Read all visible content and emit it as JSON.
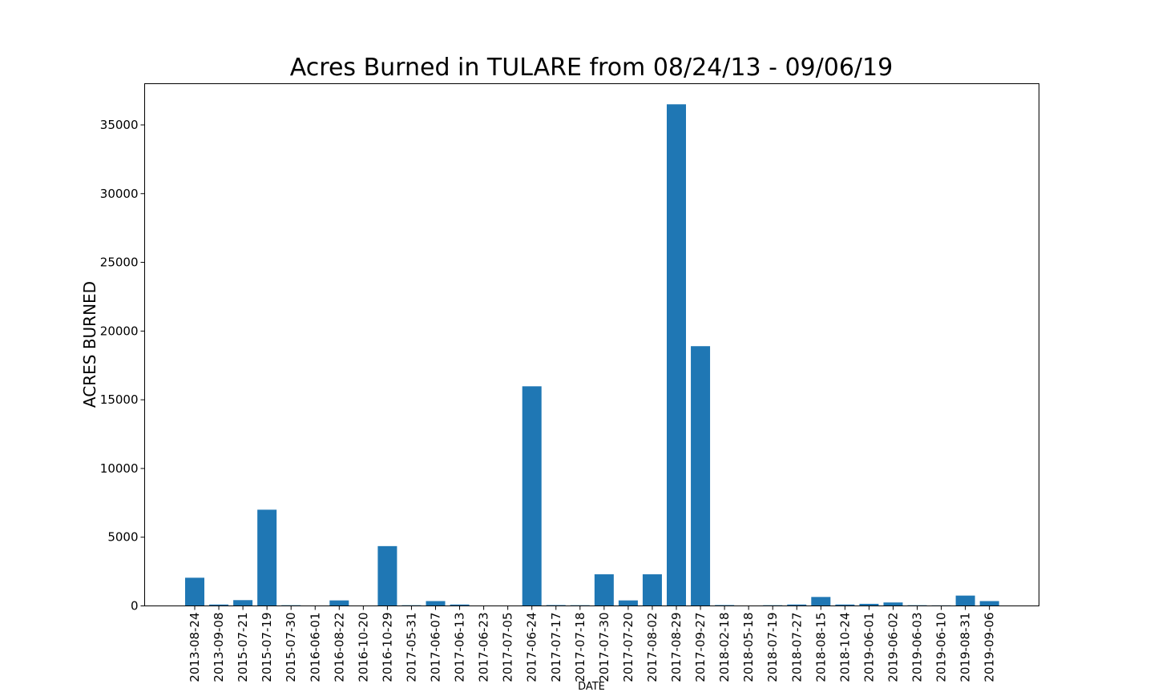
{
  "chart_data": {
    "type": "bar",
    "title": "Acres Burned in TULARE from 08/24/13 - 09/06/19",
    "xlabel": "DATE",
    "ylabel": "ACRES BURNED",
    "ylim": [
      0,
      38000
    ],
    "yticks": [
      0,
      5000,
      10000,
      15000,
      20000,
      25000,
      30000,
      35000
    ],
    "grid": false,
    "color": "#1f77b4",
    "categories": [
      "2013-08-24",
      "2013-09-08",
      "2015-07-21",
      "2015-07-19",
      "2015-07-30",
      "2016-06-01",
      "2016-08-22",
      "2016-10-20",
      "2016-10-29",
      "2017-05-31",
      "2017-06-07",
      "2017-06-13",
      "2017-06-23",
      "2017-07-05",
      "2017-06-24",
      "2017-07-17",
      "2017-07-18",
      "2017-07-30",
      "2017-07-20",
      "2017-08-02",
      "2017-08-29",
      "2017-09-27",
      "2018-02-18",
      "2018-05-18",
      "2018-07-19",
      "2018-07-27",
      "2018-08-15",
      "2018-10-24",
      "2019-06-01",
      "2019-06-02",
      "2019-06-03",
      "2019-06-10",
      "2019-08-31",
      "2019-09-06"
    ],
    "values": [
      2050,
      100,
      420,
      7000,
      50,
      10,
      400,
      10,
      4350,
      50,
      350,
      100,
      10,
      10,
      15980,
      60,
      50,
      2300,
      400,
      2300,
      36500,
      18900,
      60,
      10,
      50,
      100,
      650,
      100,
      150,
      250,
      50,
      40,
      750,
      350
    ]
  }
}
